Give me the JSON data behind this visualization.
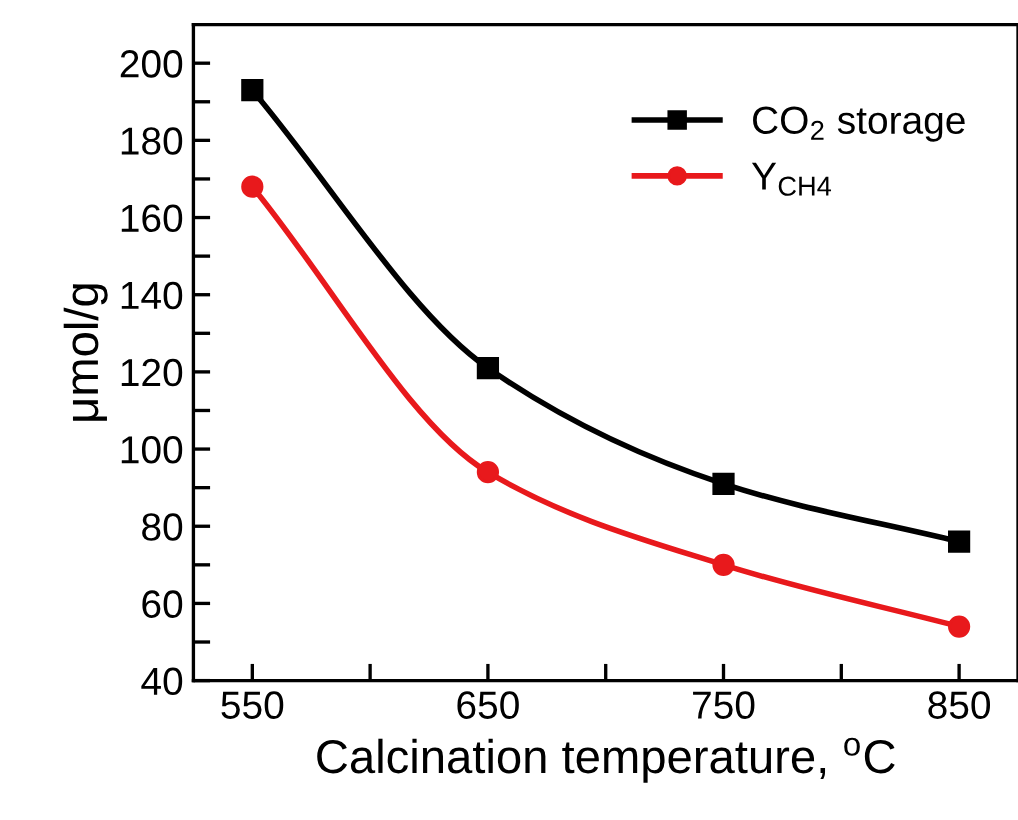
{
  "chart_data": {
    "type": "line",
    "xlabel": "Calcination temperature, $^{o}$C",
    "ylabel": "μmol/g",
    "x": [
      550,
      650,
      750,
      850
    ],
    "series": [
      {
        "name": "CO$_{2}$ storage",
        "color": "#000000",
        "values": [
          193,
          121,
          91,
          76
        ],
        "marker": "square"
      },
      {
        "name": "Y$_{CH4}$",
        "color": "#e8191c",
        "values": [
          168,
          94,
          70,
          54
        ],
        "marker": "circle"
      }
    ],
    "xlim": [
      525,
      875
    ],
    "ylim": [
      40,
      210
    ],
    "xticks": [
      550,
      {
        "value": 600,
        "label": null
      },
      650,
      {
        "value": 700,
        "label": null
      },
      750,
      {
        "value": 800,
        "label": null
      },
      850
    ],
    "yticks": [
      40,
      {
        "value": 50,
        "label": null
      },
      60,
      {
        "value": 70,
        "label": null
      },
      80,
      {
        "value": 90,
        "label": null
      },
      100,
      {
        "value": 110,
        "label": null
      },
      120,
      {
        "value": 130,
        "label": null
      },
      140,
      {
        "value": 150,
        "label": null
      },
      160,
      {
        "value": 170,
        "label": null
      },
      180,
      {
        "value": 190,
        "label": null
      },
      200
    ],
    "grid": false,
    "legend": "top right",
    "line_style": "solid"
  }
}
